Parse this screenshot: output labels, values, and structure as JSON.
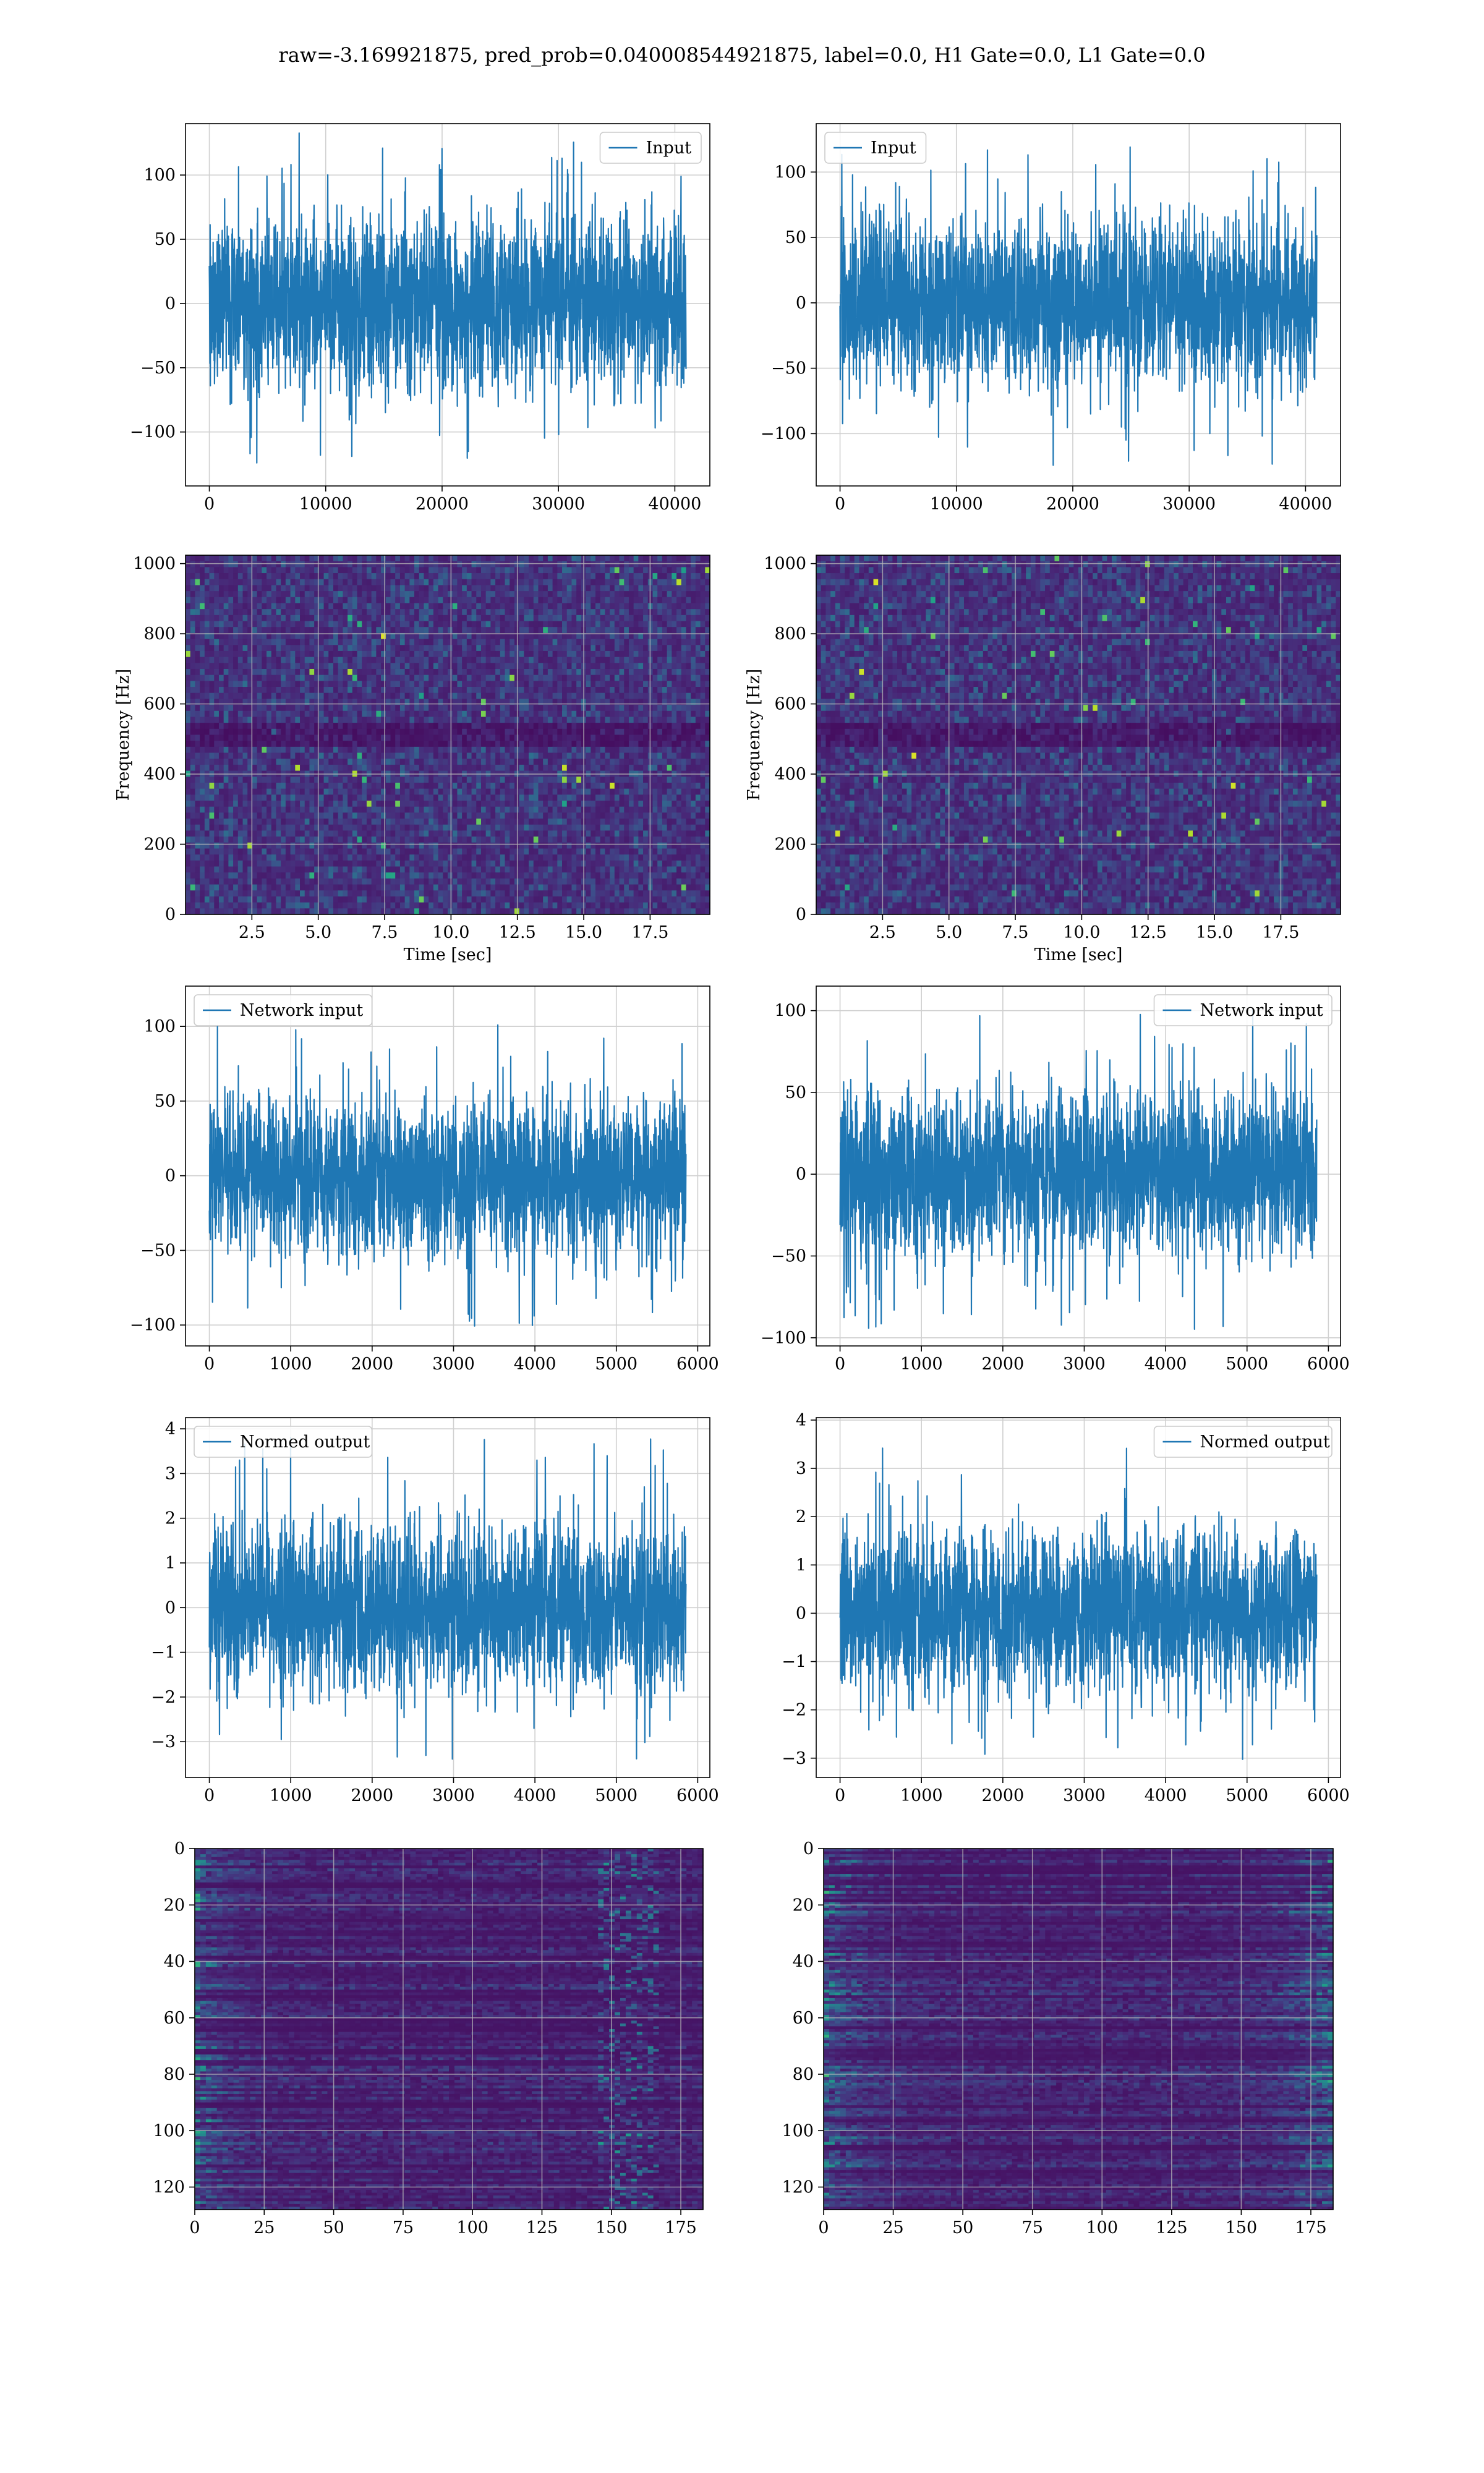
{
  "figure": {
    "suptitle": "raw=-3.169921875, pred_prob=0.040008544921875, label=0.0, H1 Gate=0.0, L1 Gate=0.0"
  },
  "colors": {
    "line": "#1f77b4",
    "viridis_low": "#440154",
    "viridis_mid": "#21918c",
    "viridis_high": "#fde725",
    "grid": "#d0d0d0"
  },
  "chart_data": [
    {
      "id": "h1-input",
      "type": "line",
      "legend": "Input",
      "legend_loc": "upper right",
      "x_range": [
        0,
        40960
      ],
      "y_envelope": [
        -127,
        133
      ],
      "xlim": [
        -2048,
        43008
      ],
      "ylim": [
        -142,
        140
      ],
      "xticks": [
        0,
        10000,
        20000,
        30000,
        40000
      ],
      "xtick_labels": [
        "0",
        "10000",
        "20000",
        "30000",
        "40000"
      ],
      "yticks": [
        -100,
        -50,
        0,
        50,
        100
      ],
      "ytick_labels": [
        "−100",
        "−50",
        "0",
        "50",
        "100"
      ],
      "grid": true
    },
    {
      "id": "l1-input",
      "type": "line",
      "legend": "Input",
      "legend_loc": "upper left",
      "x_range": [
        0,
        40960
      ],
      "y_envelope": [
        -127,
        124
      ],
      "xlim": [
        -2048,
        43008
      ],
      "ylim": [
        -140,
        137
      ],
      "xticks": [
        0,
        10000,
        20000,
        30000,
        40000
      ],
      "xtick_labels": [
        "0",
        "10000",
        "20000",
        "30000",
        "40000"
      ],
      "yticks": [
        -100,
        -50,
        0,
        50,
        100
      ],
      "ytick_labels": [
        "−100",
        "−50",
        "0",
        "50",
        "100"
      ],
      "grid": true
    },
    {
      "id": "h1-spectrogram",
      "type": "heatmap",
      "xlabel": "Time [sec]",
      "ylabel": "Frequency [Hz]",
      "xlim": [
        0,
        19.75
      ],
      "ylim": [
        0,
        1024
      ],
      "xticks": [
        2.5,
        5.0,
        7.5,
        10.0,
        12.5,
        15.0,
        17.5
      ],
      "xtick_labels": [
        "2.5",
        "5.0",
        "7.5",
        "10.0",
        "12.5",
        "15.0",
        "17.5"
      ],
      "yticks": [
        0,
        200,
        400,
        600,
        800,
        1000
      ],
      "ytick_labels": [
        "0",
        "200",
        "400",
        "600",
        "800",
        "1000"
      ],
      "colormap": "viridis",
      "grid": true
    },
    {
      "id": "l1-spectrogram",
      "type": "heatmap",
      "xlabel": "Time [sec]",
      "ylabel": "Frequency [Hz]",
      "xlim": [
        0,
        19.75
      ],
      "ylim": [
        0,
        1024
      ],
      "xticks": [
        2.5,
        5.0,
        7.5,
        10.0,
        12.5,
        15.0,
        17.5
      ],
      "xtick_labels": [
        "2.5",
        "5.0",
        "7.5",
        "10.0",
        "12.5",
        "15.0",
        "17.5"
      ],
      "yticks": [
        0,
        200,
        400,
        600,
        800,
        1000
      ],
      "ytick_labels": [
        "0",
        "200",
        "400",
        "600",
        "800",
        "1000"
      ],
      "colormap": "viridis",
      "grid": true
    },
    {
      "id": "h1-network-input",
      "type": "line",
      "legend": "Network input",
      "legend_loc": "upper left",
      "x_range": [
        0,
        5856
      ],
      "y_envelope": [
        -104,
        105
      ],
      "xlim": [
        -293,
        6149
      ],
      "ylim": [
        -114,
        127
      ],
      "xticks": [
        0,
        1000,
        2000,
        3000,
        4000,
        5000,
        6000
      ],
      "xtick_labels": [
        "0",
        "1000",
        "2000",
        "3000",
        "4000",
        "5000",
        "6000"
      ],
      "yticks": [
        -100,
        -50,
        0,
        50,
        100
      ],
      "ytick_labels": [
        "−100",
        "−50",
        "0",
        "50",
        "100"
      ],
      "grid": true
    },
    {
      "id": "l1-network-input",
      "type": "line",
      "legend": "Network input",
      "legend_loc": "upper right",
      "x_range": [
        0,
        5856
      ],
      "y_envelope": [
        -96,
        102
      ],
      "xlim": [
        -293,
        6149
      ],
      "ylim": [
        -105,
        115
      ],
      "xticks": [
        0,
        1000,
        2000,
        3000,
        4000,
        5000,
        6000
      ],
      "xtick_labels": [
        "0",
        "1000",
        "2000",
        "3000",
        "4000",
        "5000",
        "6000"
      ],
      "yticks": [
        -100,
        -50,
        0,
        50,
        100
      ],
      "ytick_labels": [
        "−100",
        "−50",
        "0",
        "50",
        "100"
      ],
      "grid": true
    },
    {
      "id": "h1-normed-output",
      "type": "line",
      "legend": "Normed output",
      "legend_loc": "upper left",
      "x_range": [
        0,
        5856
      ],
      "y_envelope": [
        -3.4,
        3.9
      ],
      "xlim": [
        -293,
        6149
      ],
      "ylim": [
        -3.8,
        4.25
      ],
      "xticks": [
        0,
        1000,
        2000,
        3000,
        4000,
        5000,
        6000
      ],
      "xtick_labels": [
        "0",
        "1000",
        "2000",
        "3000",
        "4000",
        "5000",
        "6000"
      ],
      "yticks": [
        -3,
        -2,
        -1,
        0,
        1,
        2,
        3,
        4
      ],
      "ytick_labels": [
        "−3",
        "−2",
        "−1",
        "0",
        "1",
        "2",
        "3",
        "4"
      ],
      "grid": true
    },
    {
      "id": "l1-normed-output",
      "type": "line",
      "legend": "Normed output",
      "legend_loc": "upper right",
      "x_range": [
        0,
        5856
      ],
      "y_envelope": [
        -3.1,
        3.6
      ],
      "xlim": [
        -293,
        6149
      ],
      "ylim": [
        -3.4,
        4.05
      ],
      "xticks": [
        0,
        1000,
        2000,
        3000,
        4000,
        5000,
        6000
      ],
      "xtick_labels": [
        "0",
        "1000",
        "2000",
        "3000",
        "4000",
        "5000",
        "6000"
      ],
      "yticks": [
        -3,
        -2,
        -1,
        0,
        1,
        2,
        3,
        4
      ],
      "ytick_labels": [
        "−3",
        "−2",
        "−1",
        "0",
        "1",
        "2",
        "3",
        "4"
      ],
      "grid": true
    },
    {
      "id": "h1-feature-map",
      "type": "heatmap",
      "xlim": [
        0,
        183
      ],
      "ylim": [
        128,
        0
      ],
      "y_inverted": true,
      "xticks": [
        0,
        25,
        50,
        75,
        100,
        125,
        150,
        175
      ],
      "xtick_labels": [
        "0",
        "25",
        "50",
        "75",
        "100",
        "125",
        "150",
        "175"
      ],
      "yticks": [
        0,
        20,
        40,
        60,
        80,
        100,
        120
      ],
      "ytick_labels": [
        "0",
        "20",
        "40",
        "60",
        "80",
        "100",
        "120"
      ],
      "colormap": "viridis",
      "grid": true
    },
    {
      "id": "l1-feature-map",
      "type": "heatmap",
      "xlim": [
        0,
        183
      ],
      "ylim": [
        128,
        0
      ],
      "y_inverted": true,
      "xticks": [
        0,
        25,
        50,
        75,
        100,
        125,
        150,
        175
      ],
      "xtick_labels": [
        "0",
        "25",
        "50",
        "75",
        "100",
        "125",
        "150",
        "175"
      ],
      "yticks": [
        0,
        20,
        40,
        60,
        80,
        100,
        120
      ],
      "ytick_labels": [
        "0",
        "20",
        "40",
        "60",
        "80",
        "100",
        "120"
      ],
      "colormap": "viridis",
      "grid": true
    }
  ]
}
